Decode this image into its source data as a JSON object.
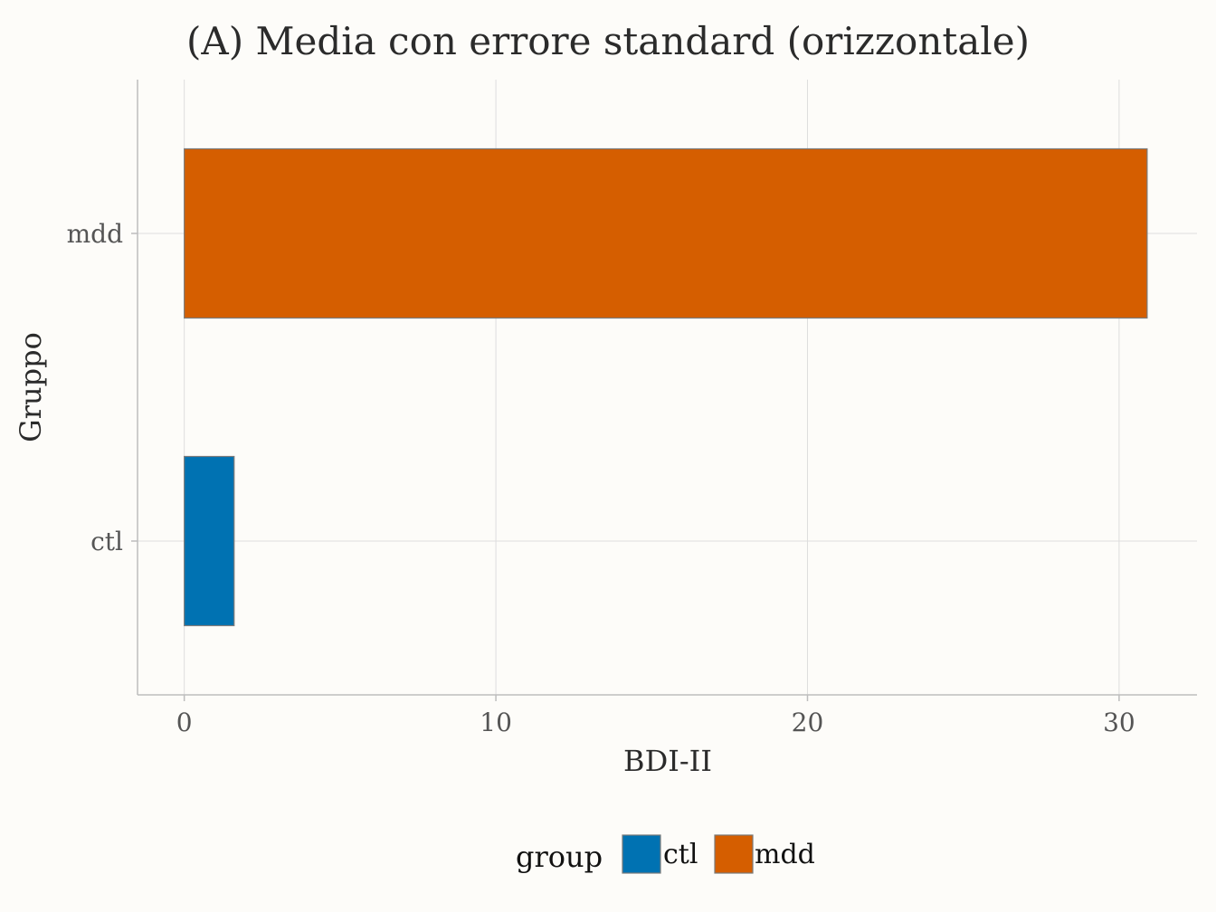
{
  "chart_data": {
    "type": "bar",
    "orientation": "horizontal",
    "title": "(A) Media con errore standard (orizzontale)",
    "xlabel": "BDI-II",
    "ylabel": "Gruppo",
    "categories": [
      "ctl",
      "mdd"
    ],
    "values": [
      1.6,
      30.9
    ],
    "colors": [
      "#0072b2",
      "#d55e00"
    ],
    "xlim": [
      -1.5,
      32.5
    ],
    "xticks": [
      0,
      10,
      20,
      30
    ],
    "grid": true,
    "legend": {
      "title": "group",
      "position": "bottom",
      "entries": [
        {
          "label": "ctl",
          "color": "#0072b2"
        },
        {
          "label": "mdd",
          "color": "#d55e00"
        }
      ]
    }
  }
}
